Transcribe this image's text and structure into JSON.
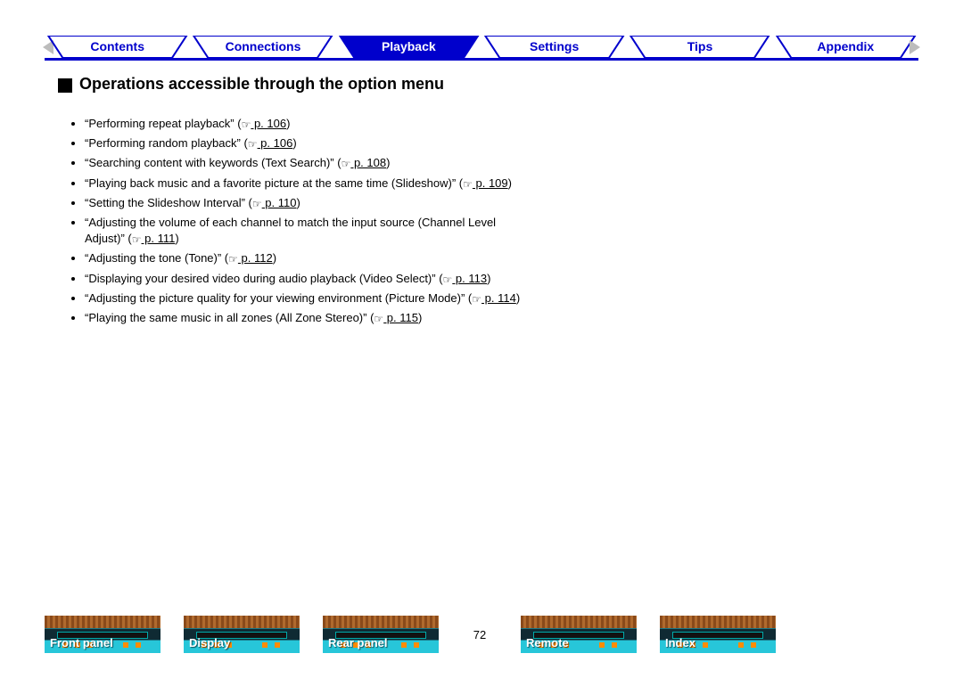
{
  "tabs": [
    {
      "label": "Contents",
      "active": false
    },
    {
      "label": "Connections",
      "active": false
    },
    {
      "label": "Playback",
      "active": true
    },
    {
      "label": "Settings",
      "active": false
    },
    {
      "label": "Tips",
      "active": false
    },
    {
      "label": "Appendix",
      "active": false
    }
  ],
  "colors": {
    "accent": "#0000cc",
    "tab_text": "#0000cc",
    "tab_active_fill": "#0000cc",
    "tab_active_text": "#ffffff",
    "thumb_teal": "#27c6d9",
    "thumb_wood": "#a05a22"
  },
  "heading": "Operations accessible through the option menu",
  "items": [
    {
      "text": "“Performing repeat playback”",
      "page": "p. 106"
    },
    {
      "text": "“Performing random playback”",
      "page": "p. 106"
    },
    {
      "text": "“Searching content with keywords (Text Search)”",
      "page": "p. 108"
    },
    {
      "text": "“Playing back music and a favorite picture at the same time (Slideshow)”",
      "page": "p. 109"
    },
    {
      "text": "“Setting the Slideshow Interval”",
      "page": "p. 110"
    },
    {
      "text": "“Adjusting the volume of each channel to match the input source (Channel Level Adjust)”",
      "page": "p. 111"
    },
    {
      "text": "“Adjusting the tone (Tone)”",
      "page": "p. 112"
    },
    {
      "text": "“Displaying your desired video during audio playback (Video Select)”",
      "page": "p. 113"
    },
    {
      "text": "“Adjusting the picture quality for your viewing environment (Picture Mode)”",
      "page": "p. 114"
    },
    {
      "text": "“Playing the same music in all zones (All Zone Stereo)”",
      "page": "p. 115"
    }
  ],
  "bottom": [
    {
      "label": "Front panel"
    },
    {
      "label": "Display"
    },
    {
      "label": "Rear panel"
    }
  ],
  "page_number": "72",
  "bottom2": [
    {
      "label": "Remote"
    },
    {
      "label": "Index"
    }
  ]
}
